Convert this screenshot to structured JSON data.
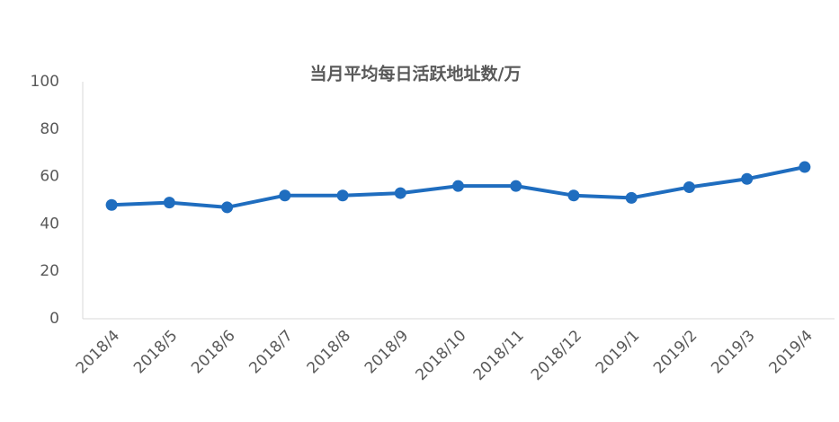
{
  "chart_data": {
    "type": "line",
    "title": "当月平均每日活跃地址数/万",
    "categories": [
      "2018/4",
      "2018/5",
      "2018/6",
      "2018/7",
      "2018/8",
      "2018/9",
      "2018/10",
      "2018/11",
      "2018/12",
      "2019/1",
      "2019/2",
      "2019/3",
      "2019/4"
    ],
    "values": [
      48,
      49,
      47,
      52,
      52,
      53,
      56,
      56,
      52,
      51,
      55.5,
      59,
      64
    ],
    "color": "#1f6dbf",
    "ylim": [
      0,
      100
    ],
    "yticks": [
      0,
      20,
      40,
      60,
      80,
      100
    ],
    "grid": false
  }
}
